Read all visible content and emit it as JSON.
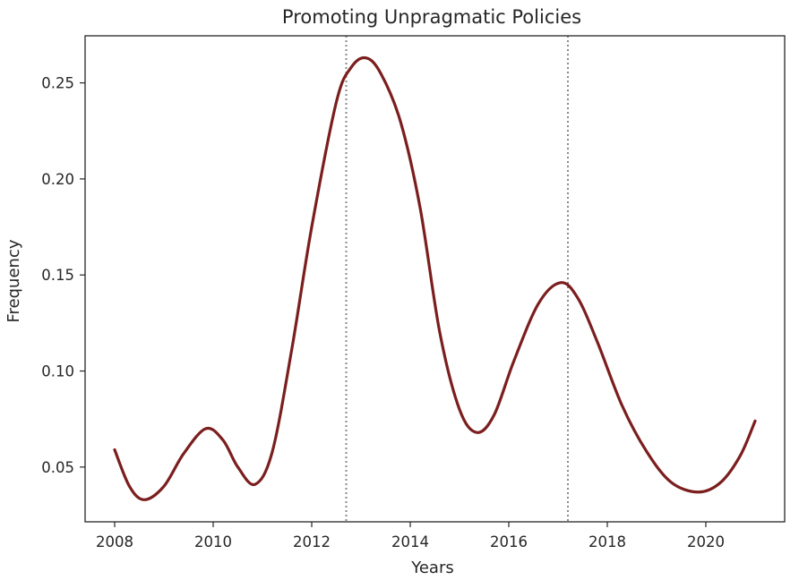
{
  "chart_data": {
    "type": "line",
    "title": "Promoting Unpragmatic Policies",
    "xlabel": "Years",
    "ylabel": "Frequency",
    "xlim": [
      2007.4,
      2021.6
    ],
    "ylim": [
      0.0215,
      0.2745
    ],
    "x_ticks": [
      2008,
      2010,
      2012,
      2014,
      2016,
      2018,
      2020
    ],
    "y_ticks": [
      0.05,
      0.1,
      0.15,
      0.2,
      0.25
    ],
    "x_tick_labels": [
      "2008",
      "2010",
      "2012",
      "2014",
      "2016",
      "2018",
      "2020"
    ],
    "y_tick_labels": [
      "0.05",
      "0.10",
      "0.15",
      "0.20",
      "0.25"
    ],
    "grid": false,
    "vlines": [
      2012.7,
      2017.2
    ],
    "series": [
      {
        "color": "#7b1e1e",
        "x": [
          2008.0,
          2008.3,
          2008.6,
          2009.0,
          2009.4,
          2009.85,
          2010.2,
          2010.5,
          2010.85,
          2011.2,
          2011.6,
          2012.0,
          2012.5,
          2012.8,
          2013.1,
          2013.4,
          2013.8,
          2014.2,
          2014.6,
          2015.0,
          2015.35,
          2015.7,
          2016.1,
          2016.6,
          2017.05,
          2017.4,
          2017.8,
          2018.3,
          2018.8,
          2019.3,
          2019.85,
          2020.3,
          2020.7,
          2021.0
        ],
        "values": [
          0.059,
          0.04,
          0.033,
          0.04,
          0.057,
          0.07,
          0.064,
          0.05,
          0.041,
          0.058,
          0.112,
          0.175,
          0.24,
          0.258,
          0.263,
          0.255,
          0.23,
          0.185,
          0.12,
          0.08,
          0.068,
          0.077,
          0.105,
          0.135,
          0.146,
          0.138,
          0.115,
          0.082,
          0.058,
          0.042,
          0.037,
          0.042,
          0.056,
          0.074
        ]
      }
    ]
  }
}
